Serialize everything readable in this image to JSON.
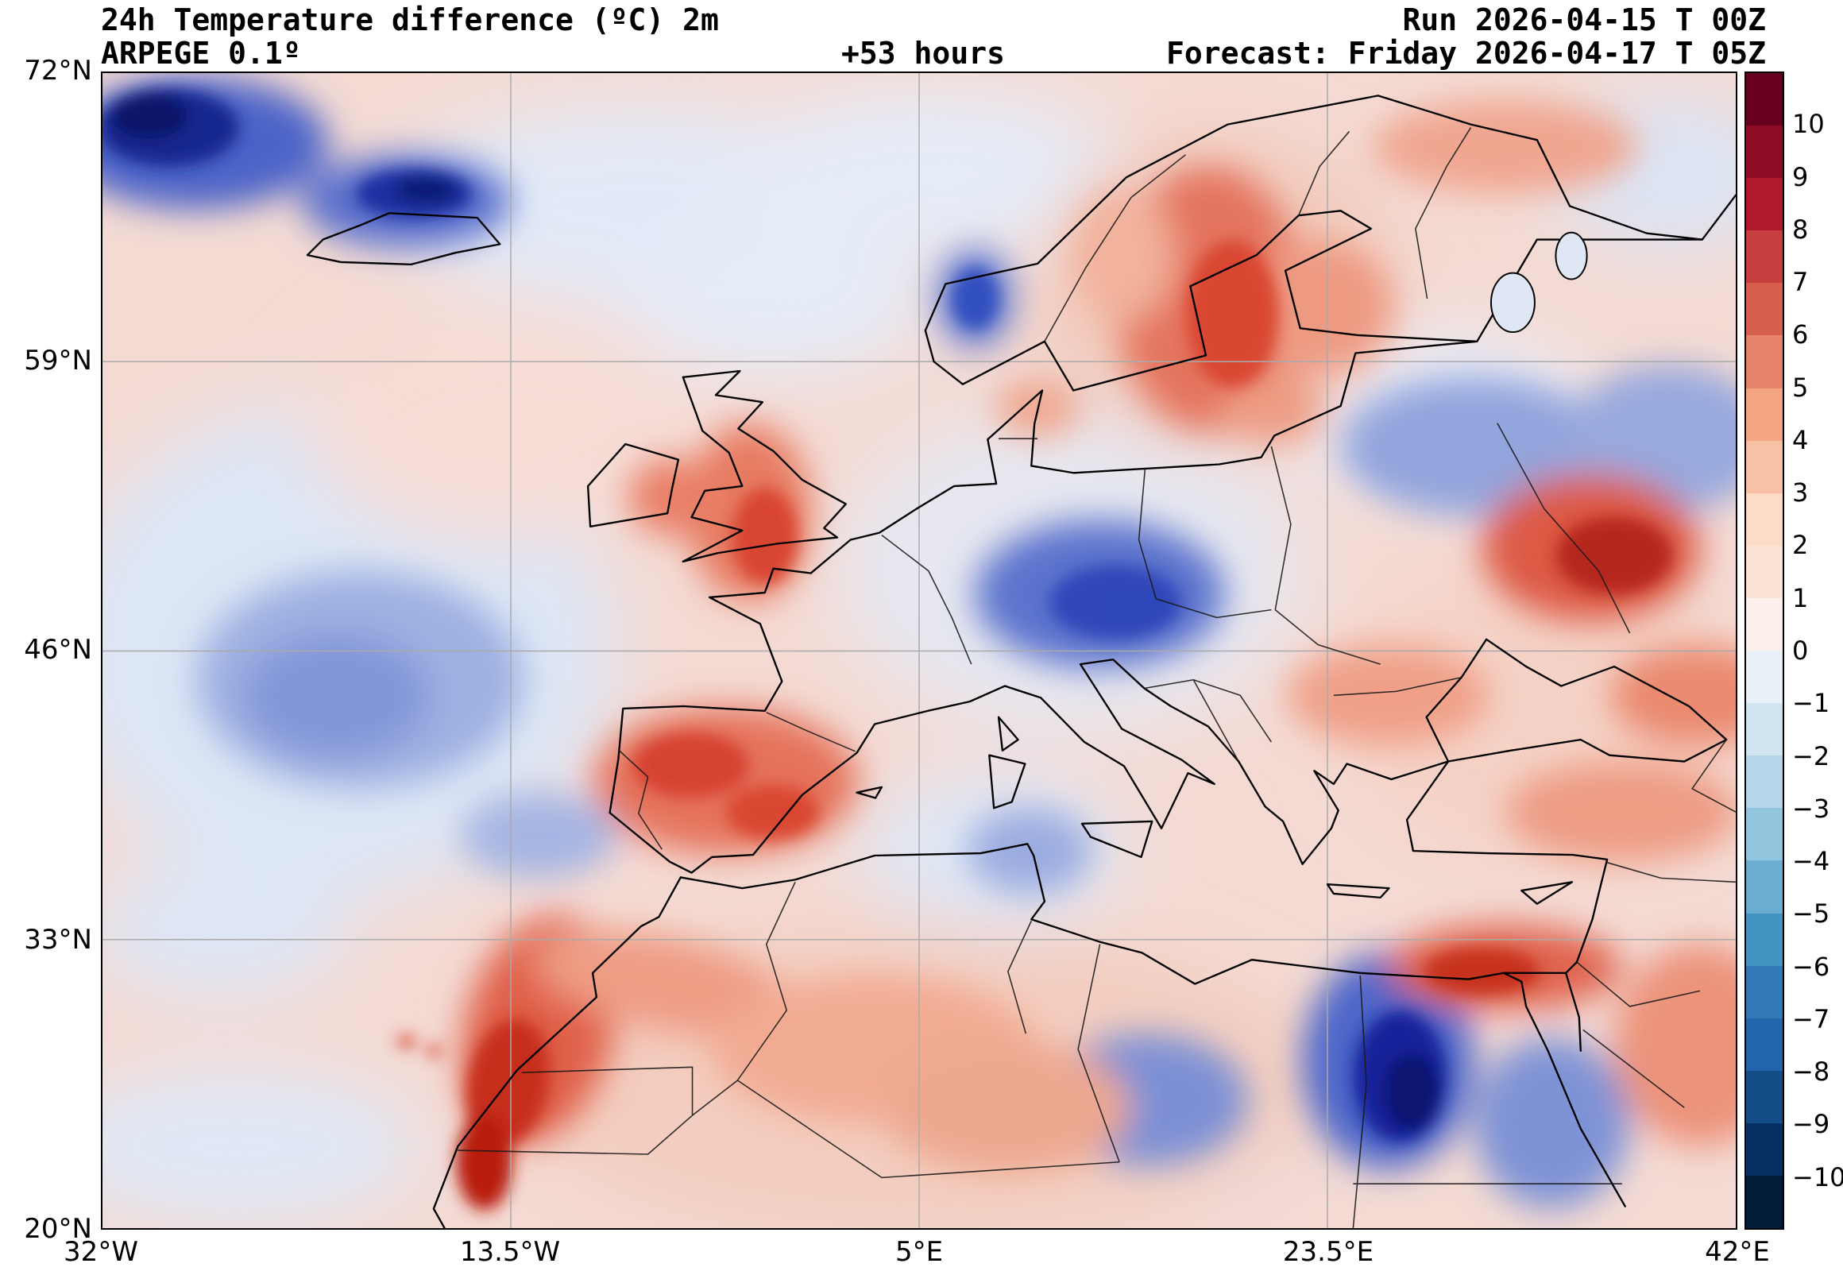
{
  "header": {
    "title": "24h Temperature difference (ºC) 2m",
    "model": "ARPEGE 0.1º",
    "lead": "+53 hours",
    "run": "Run 2026-04-15 T 00Z",
    "forecast": "Forecast: Friday 2026-04-17 T 05Z"
  },
  "axes": {
    "lat_ticks": [
      "72°N",
      "59°N",
      "46°N",
      "33°N",
      "20°N"
    ],
    "lon_ticks": [
      "32°W",
      "13.5°W",
      "5°E",
      "23.5°E",
      "42°E"
    ]
  },
  "colorbar": {
    "tick_labels": [
      "10",
      "9",
      "8",
      "7",
      "6",
      "5",
      "4",
      "3",
      "2",
      "1",
      "0",
      "−1",
      "−2",
      "−3",
      "−4",
      "−5",
      "−6",
      "−7",
      "−8",
      "−9",
      "−10"
    ],
    "colors": [
      "#67001f",
      "#8e0c25",
      "#b2182b",
      "#c73e3e",
      "#d6604d",
      "#e6846a",
      "#f4a582",
      "#f8c0a4",
      "#fddbc7",
      "#fbe3d6",
      "#fdf0ec",
      "#e9f0f8",
      "#d1e5f0",
      "#b5d5e8",
      "#92c5de",
      "#6bacd1",
      "#4393c3",
      "#3079b6",
      "#2166ac",
      "#134c87",
      "#053061",
      "#031c3a"
    ]
  },
  "chart_data": {
    "type": "heatmap",
    "title": "24h Temperature difference (ºC) 2m",
    "model": "ARPEGE 0.1º",
    "lead_time_hours": 53,
    "run": "2026-04-15 T 00Z",
    "valid": "Friday 2026-04-17 T 05Z",
    "variable": "2 m temperature, 24-hour difference",
    "units": "ºC",
    "lat_range": [
      20,
      72
    ],
    "lon_range": [
      -32,
      42
    ],
    "lat_ticks_deg": [
      72,
      59,
      46,
      33,
      20
    ],
    "lon_ticks_deg": [
      -32,
      -13.5,
      5,
      23.5,
      42
    ],
    "colorbar_levels": [
      -10,
      -9,
      -8,
      -7,
      -6,
      -5,
      -4,
      -3,
      -2,
      -1,
      0,
      1,
      2,
      3,
      4,
      5,
      6,
      7,
      8,
      9,
      10
    ],
    "colormap": "diverging red-blue (red = warming, blue = cooling)",
    "grid": true,
    "legend_position": "right vertical colorbar",
    "regions": [
      {
        "area": "Greenland coast (top-left corner)",
        "diff_range_c": [
          -10,
          -6
        ]
      },
      {
        "area": "Iceland",
        "diff_range_c": [
          -10,
          -5
        ]
      },
      {
        "area": "NE Atlantic west of Biscay/Iberia",
        "diff_range_c": [
          -4,
          -1
        ]
      },
      {
        "area": "Ireland and Great Britain",
        "diff_range_c": [
          2,
          5
        ]
      },
      {
        "area": "Iberian Peninsula",
        "diff_range_c": [
          2,
          5
        ]
      },
      {
        "area": "Morocco and Western Sahara coast",
        "diff_range_c": [
          4,
          9
        ]
      },
      {
        "area": "Atlas / NW Africa interior",
        "diff_range_c": [
          2,
          6
        ]
      },
      {
        "area": "France",
        "diff_range_c": [
          -1,
          1
        ]
      },
      {
        "area": "Central Europe (Germany-Czechia-Austria)",
        "diff_range_c": [
          -6,
          -2
        ]
      },
      {
        "area": "Sweden and Finland",
        "diff_range_c": [
          2,
          6
        ]
      },
      {
        "area": "Norwegian coast (local spots)",
        "diff_range_c": [
          -6,
          -2
        ]
      },
      {
        "area": "Baltic states and Belarus",
        "diff_range_c": [
          -4,
          -1
        ]
      },
      {
        "area": "Ukraine / SW Russia",
        "diff_range_c": [
          3,
          7
        ]
      },
      {
        "area": "NW Russia / Kola",
        "diff_range_c": [
          1,
          4
        ]
      },
      {
        "area": "Eastern Turkey, Syria, N Iraq",
        "diff_range_c": [
          3,
          7
        ]
      },
      {
        "area": "Egypt and NE Libya desert",
        "diff_range_c": [
          -10,
          -4
        ]
      },
      {
        "area": "Algeria / central Sahara",
        "diff_range_c": [
          1,
          4
        ]
      },
      {
        "area": "Libya interior",
        "diff_range_c": [
          -4,
          -1
        ]
      },
      {
        "area": "Mediterranean Sea (broadly)",
        "diff_range_c": [
          -1,
          1
        ]
      }
    ]
  }
}
